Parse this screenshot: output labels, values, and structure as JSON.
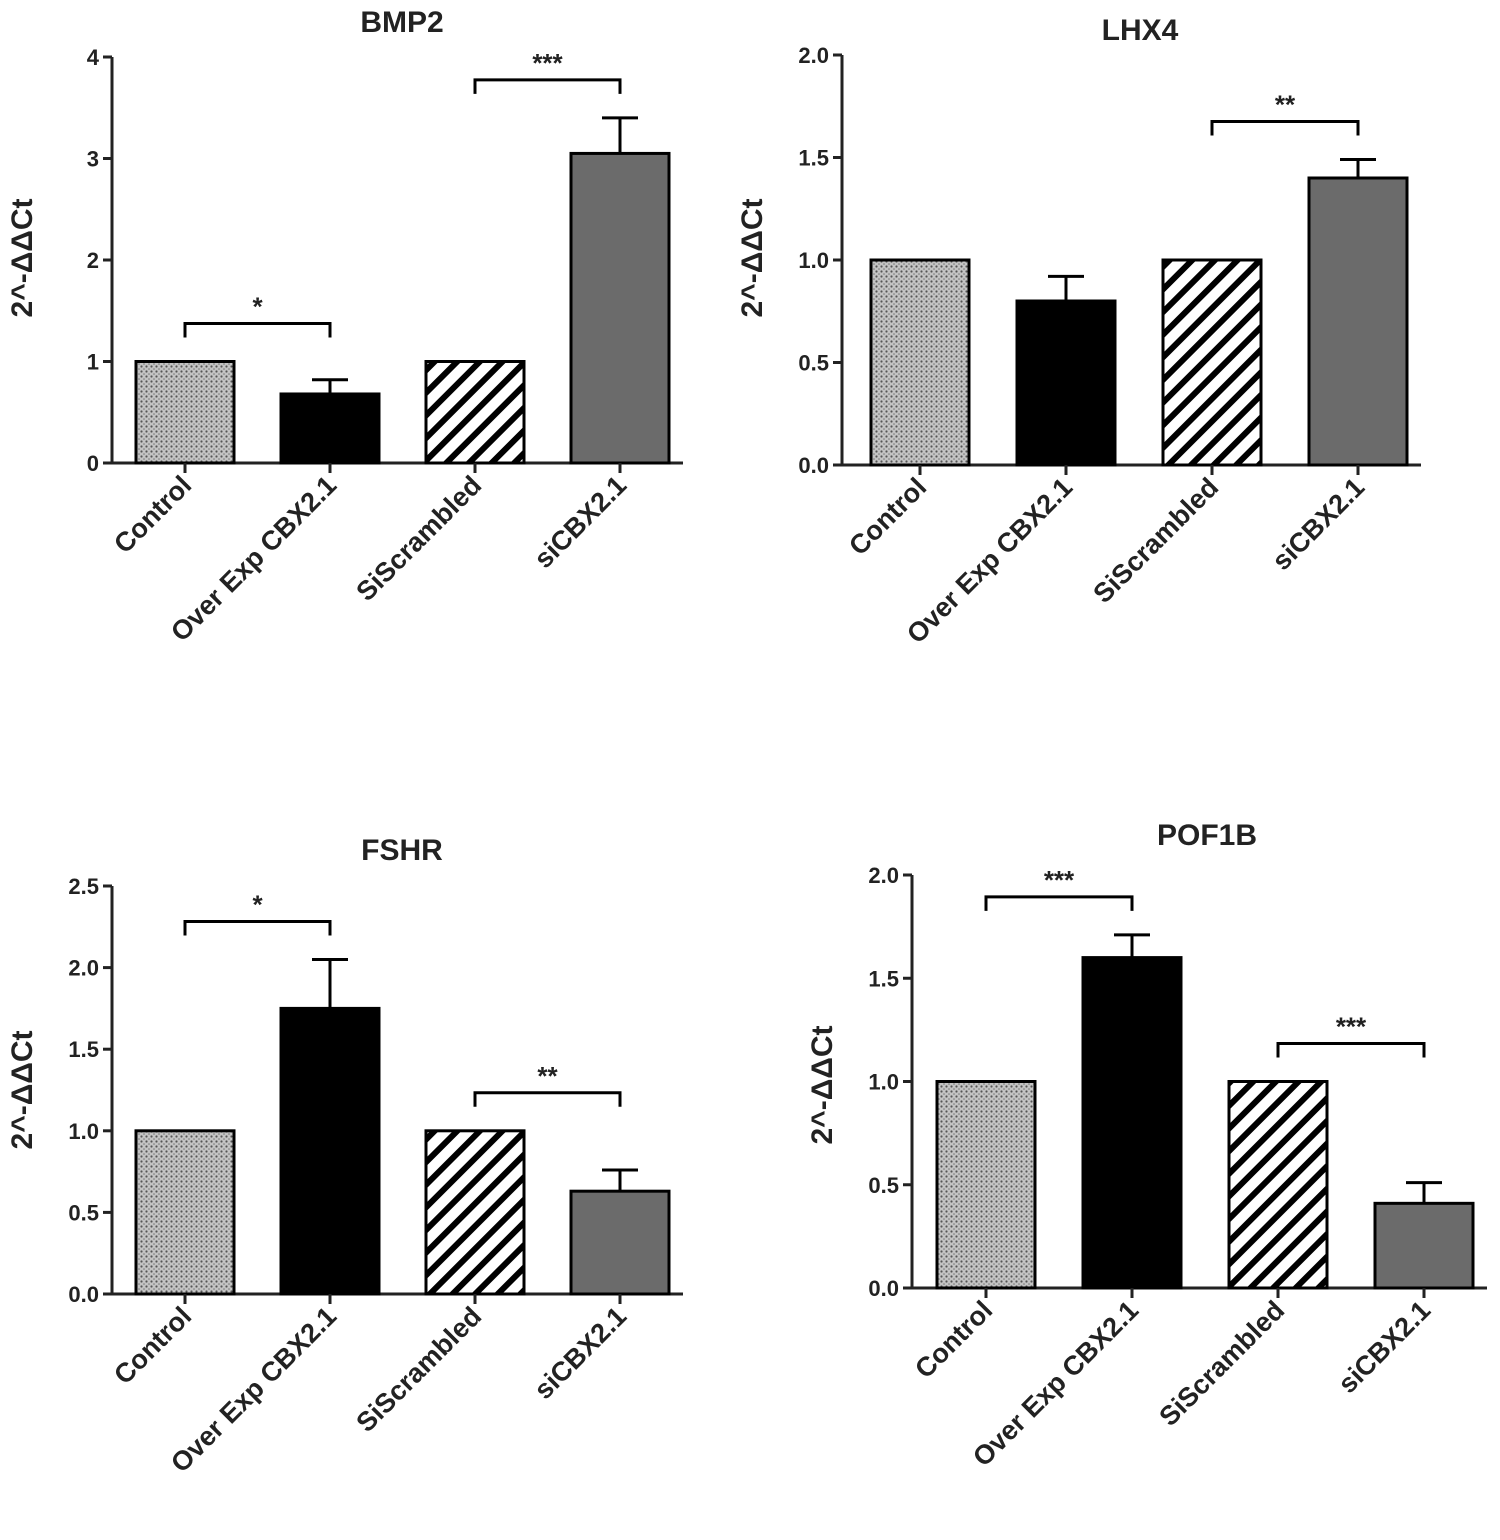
{
  "chart_data": [
    {
      "type": "bar",
      "title": "BMP2",
      "ylabel": "2^-ΔΔCt",
      "xlabel": "",
      "categories": [
        "Control",
        "Over Exp CBX2.1",
        "SiScrambled",
        "siCBX2.1"
      ],
      "values": [
        1.0,
        0.68,
        1.0,
        3.05
      ],
      "errors": [
        0,
        0.14,
        0,
        0.35
      ],
      "ylim": [
        0,
        4
      ],
      "yticks": [
        "0",
        "1",
        "2",
        "3",
        "4"
      ],
      "significance": [
        {
          "from": 0,
          "to": 1,
          "label": "*"
        },
        {
          "from": 2,
          "to": 3,
          "label": "***"
        }
      ]
    },
    {
      "type": "bar",
      "title": "LHX4",
      "ylabel": "2^-ΔΔCt",
      "xlabel": "",
      "categories": [
        "Control",
        "Over Exp CBX2.1",
        "SiScrambled",
        "siCBX2.1"
      ],
      "values": [
        1.0,
        0.8,
        1.0,
        1.4
      ],
      "errors": [
        0,
        0.12,
        0,
        0.09
      ],
      "ylim": [
        0,
        2.0
      ],
      "yticks": [
        "0.0",
        "0.5",
        "1.0",
        "1.5",
        "2.0"
      ],
      "significance": [
        {
          "from": 2,
          "to": 3,
          "label": "**"
        }
      ]
    },
    {
      "type": "bar",
      "title": "FSHR",
      "ylabel": "2^-ΔΔCt",
      "xlabel": "",
      "categories": [
        "Control",
        "Over Exp CBX2.1",
        "SiScrambled",
        "siCBX2.1"
      ],
      "values": [
        1.0,
        1.75,
        1.0,
        0.63
      ],
      "errors": [
        0,
        0.3,
        0,
        0.13
      ],
      "ylim": [
        0,
        2.5
      ],
      "yticks": [
        "0.0",
        "0.5",
        "1.0",
        "1.5",
        "2.0",
        "2.5"
      ],
      "significance": [
        {
          "from": 0,
          "to": 1,
          "label": "*"
        },
        {
          "from": 2,
          "to": 3,
          "label": "**"
        }
      ]
    },
    {
      "type": "bar",
      "title": "POF1B",
      "ylabel": "2^-ΔΔCt",
      "xlabel": "",
      "categories": [
        "Control",
        "Over Exp CBX2.1",
        "SiScrambled",
        "siCBX2.1"
      ],
      "values": [
        1.0,
        1.6,
        1.0,
        0.41
      ],
      "errors": [
        0,
        0.11,
        0,
        0.1
      ],
      "ylim": [
        0,
        2.0
      ],
      "yticks": [
        "0.0",
        "0.5",
        "1.0",
        "1.5",
        "2.0"
      ],
      "significance": [
        {
          "from": 0,
          "to": 1,
          "label": "***"
        },
        {
          "from": 2,
          "to": 3,
          "label": "***"
        }
      ]
    }
  ],
  "colors": {
    "control": "#b8b8b8",
    "over_exp": "#000000",
    "scrambled_hatch": "#000000",
    "sicbx": "#6b6b6b",
    "axis": "#222222"
  },
  "fills": [
    "dots",
    "solid-black",
    "diagonal-hatch",
    "solid-gray"
  ]
}
